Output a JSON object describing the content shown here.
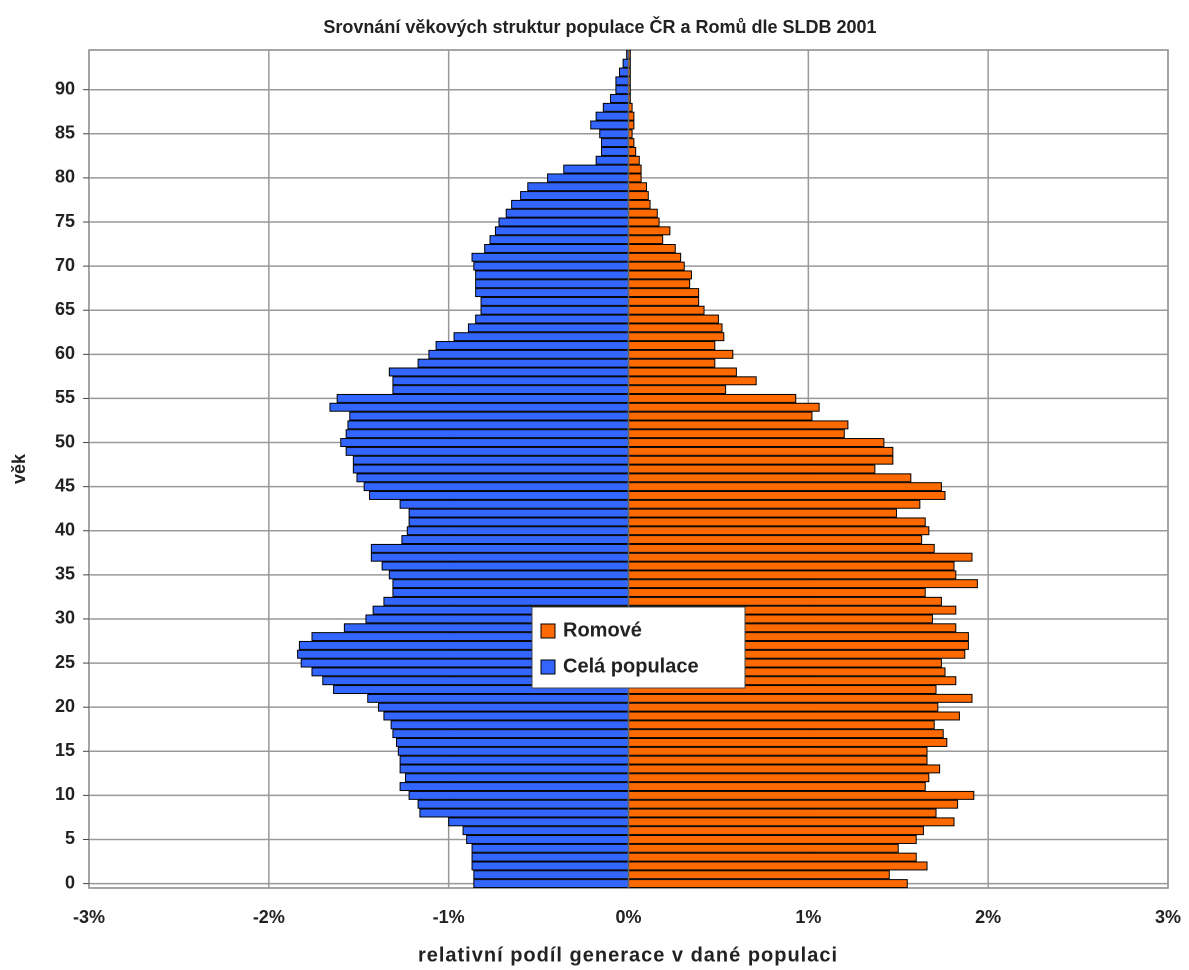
{
  "chart_data": {
    "type": "bar",
    "orientation": "horizontal",
    "title": "Srovnání věkových struktur populace ČR a Romů dle SLDB 2001",
    "xlabel": "relativní podíl generace v dané populaci",
    "ylabel": "věk",
    "y": [
      0,
      1,
      2,
      3,
      4,
      5,
      6,
      7,
      8,
      9,
      10,
      11,
      12,
      13,
      14,
      15,
      16,
      17,
      18,
      19,
      20,
      21,
      22,
      23,
      24,
      25,
      26,
      27,
      28,
      29,
      30,
      31,
      32,
      33,
      34,
      35,
      36,
      37,
      38,
      39,
      40,
      41,
      42,
      43,
      44,
      45,
      46,
      47,
      48,
      49,
      50,
      51,
      52,
      53,
      54,
      55,
      56,
      57,
      58,
      59,
      60,
      61,
      62,
      63,
      64,
      65,
      66,
      67,
      68,
      69,
      70,
      71,
      72,
      73,
      74,
      75,
      76,
      77,
      78,
      79,
      80,
      81,
      82,
      83,
      84,
      85,
      86,
      87,
      88,
      89,
      90,
      91,
      92,
      93,
      94
    ],
    "series": [
      {
        "name": "Romové",
        "color": "#ff6a00",
        "values": [
          1.55,
          1.45,
          1.66,
          1.6,
          1.5,
          1.6,
          1.64,
          1.81,
          1.71,
          1.83,
          1.92,
          1.65,
          1.67,
          1.73,
          1.66,
          1.66,
          1.77,
          1.75,
          1.7,
          1.84,
          1.72,
          1.91,
          1.71,
          1.82,
          1.76,
          1.74,
          1.87,
          1.89,
          1.89,
          1.82,
          1.69,
          1.82,
          1.74,
          1.65,
          1.94,
          1.82,
          1.81,
          1.91,
          1.7,
          1.63,
          1.67,
          1.65,
          1.49,
          1.62,
          1.76,
          1.74,
          1.57,
          1.37,
          1.47,
          1.47,
          1.42,
          1.2,
          1.22,
          1.02,
          1.06,
          0.93,
          0.54,
          0.71,
          0.6,
          0.48,
          0.58,
          0.48,
          0.53,
          0.52,
          0.5,
          0.42,
          0.39,
          0.39,
          0.34,
          0.35,
          0.31,
          0.29,
          0.26,
          0.19,
          0.23,
          0.17,
          0.16,
          0.12,
          0.11,
          0.1,
          0.07,
          0.07,
          0.06,
          0.04,
          0.03,
          0.02,
          0.03,
          0.03,
          0.02,
          0.01,
          0.01,
          0.01,
          0.01,
          0.01,
          0.01
        ]
      },
      {
        "name": "Celá populace",
        "color": "#3366ff",
        "values": [
          -0.86,
          -0.86,
          -0.87,
          -0.87,
          -0.87,
          -0.9,
          -0.92,
          -1.0,
          -1.16,
          -1.17,
          -1.22,
          -1.27,
          -1.24,
          -1.27,
          -1.27,
          -1.28,
          -1.29,
          -1.31,
          -1.32,
          -1.36,
          -1.39,
          -1.45,
          -1.64,
          -1.7,
          -1.76,
          -1.82,
          -1.84,
          -1.83,
          -1.76,
          -1.58,
          -1.46,
          -1.42,
          -1.36,
          -1.31,
          -1.31,
          -1.33,
          -1.37,
          -1.43,
          -1.43,
          -1.26,
          -1.23,
          -1.22,
          -1.22,
          -1.27,
          -1.44,
          -1.47,
          -1.51,
          -1.53,
          -1.53,
          -1.57,
          -1.6,
          -1.57,
          -1.56,
          -1.55,
          -1.66,
          -1.62,
          -1.31,
          -1.31,
          -1.33,
          -1.17,
          -1.11,
          -1.07,
          -0.97,
          -0.89,
          -0.85,
          -0.82,
          -0.82,
          -0.85,
          -0.85,
          -0.85,
          -0.86,
          -0.87,
          -0.8,
          -0.77,
          -0.74,
          -0.72,
          -0.68,
          -0.65,
          -0.6,
          -0.56,
          -0.45,
          -0.36,
          -0.18,
          -0.15,
          -0.15,
          -0.16,
          -0.21,
          -0.18,
          -0.14,
          -0.1,
          -0.07,
          -0.07,
          -0.05,
          -0.03,
          -0.01
        ]
      }
    ],
    "xlim": [
      -3,
      3
    ],
    "xticks": [
      {
        "value": -3,
        "label": "-3%"
      },
      {
        "value": -2,
        "label": "-2%"
      },
      {
        "value": -1,
        "label": "-1%"
      },
      {
        "value": 0,
        "label": "0%"
      },
      {
        "value": 1,
        "label": "1%"
      },
      {
        "value": 2,
        "label": "2%"
      },
      {
        "value": 3,
        "label": "3%"
      }
    ],
    "ylim": [
      -0.5,
      94.5
    ],
    "yticks": [
      0,
      5,
      10,
      15,
      20,
      25,
      30,
      35,
      40,
      45,
      50,
      55,
      60,
      65,
      70,
      75,
      80,
      85,
      90
    ],
    "grid": true,
    "legend": "center"
  }
}
